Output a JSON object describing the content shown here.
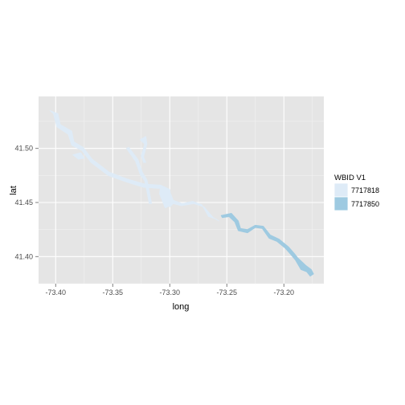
{
  "chart_data": {
    "type": "map",
    "xlabel": "long",
    "ylabel": "lat",
    "xlim": [
      -73.415,
      -73.165
    ],
    "ylim": [
      41.375,
      41.548
    ],
    "x_ticks": [
      -73.4,
      -73.35,
      -73.3,
      -73.25,
      -73.2
    ],
    "x_tick_labels": [
      "-73.40",
      "-73.35",
      "-73.30",
      "-73.25",
      "-73.20"
    ],
    "y_ticks": [
      41.4,
      41.45,
      41.5
    ],
    "y_tick_labels": [
      "41.40",
      "41.45",
      "41.50"
    ],
    "grid": true,
    "panel_background": "#e5e5e5",
    "grid_color": "#ffffff",
    "legend": {
      "title": "WBID V1",
      "position": "right",
      "entries": [
        {
          "label": "7717818",
          "color": "#deebf7"
        },
        {
          "label": "7717850",
          "color": "#9ecae1"
        }
      ]
    },
    "series": [
      {
        "name": "7717818",
        "color": "#deebf7",
        "polygons": [
          [
            [
              -73.405,
              41.535
            ],
            [
              -73.398,
              41.532
            ],
            [
              -73.396,
              41.522
            ],
            [
              -73.386,
              41.516
            ],
            [
              -73.384,
              41.506
            ],
            [
              -73.376,
              41.501
            ],
            [
              -73.368,
              41.49
            ],
            [
              -73.353,
              41.478
            ],
            [
              -73.338,
              41.472
            ],
            [
              -73.322,
              41.467
            ],
            [
              -73.308,
              41.466
            ],
            [
              -73.3,
              41.46
            ],
            [
              -73.297,
              41.452
            ],
            [
              -73.289,
              41.449
            ],
            [
              -73.28,
              41.451
            ],
            [
              -73.272,
              41.448
            ],
            [
              -73.266,
              41.437
            ],
            [
              -73.26,
              41.435
            ],
            [
              -73.257,
              41.433
            ],
            [
              -73.262,
              41.436
            ],
            [
              -73.27,
              41.446
            ],
            [
              -73.279,
              41.449
            ],
            [
              -73.29,
              41.447
            ],
            [
              -73.297,
              41.449
            ],
            [
              -73.3,
              41.446
            ],
            [
              -73.303,
              41.454
            ],
            [
              -73.308,
              41.463
            ],
            [
              -73.323,
              41.464
            ],
            [
              -73.338,
              41.469
            ],
            [
              -73.354,
              41.475
            ],
            [
              -73.369,
              41.487
            ],
            [
              -73.377,
              41.498
            ],
            [
              -73.386,
              41.503
            ],
            [
              -73.389,
              41.513
            ],
            [
              -73.399,
              41.52
            ],
            [
              -73.402,
              41.532
            ]
          ],
          [
            [
              -73.385,
              41.494
            ],
            [
              -73.378,
              41.496
            ],
            [
              -73.375,
              41.491
            ],
            [
              -73.38,
              41.49
            ]
          ],
          [
            [
              -73.338,
              41.5
            ],
            [
              -73.33,
              41.488
            ],
            [
              -73.326,
              41.476
            ],
            [
              -73.322,
              41.47
            ],
            [
              -73.32,
              41.46
            ],
            [
              -73.318,
              41.449
            ],
            [
              -73.316,
              41.449
            ],
            [
              -73.318,
              41.461
            ],
            [
              -73.32,
              41.471
            ],
            [
              -73.324,
              41.478
            ],
            [
              -73.328,
              41.49
            ],
            [
              -73.336,
              41.501
            ]
          ],
          [
            [
              -73.326,
              41.508
            ],
            [
              -73.321,
              41.511
            ],
            [
              -73.32,
              41.504
            ],
            [
              -73.323,
              41.492
            ],
            [
              -73.321,
              41.487
            ],
            [
              -73.323,
              41.487
            ],
            [
              -73.325,
              41.493
            ],
            [
              -73.322,
              41.504
            ]
          ],
          [
            [
              -73.308,
              41.466
            ],
            [
              -73.3,
              41.462
            ],
            [
              -73.299,
              41.455
            ],
            [
              -73.3,
              41.447
            ],
            [
              -73.304,
              41.445
            ],
            [
              -73.306,
              41.45
            ],
            [
              -73.309,
              41.458
            ]
          ]
        ]
      },
      {
        "name": "7717850",
        "color": "#9ecae1",
        "polygons": [
          [
            [
              -73.255,
              41.438
            ],
            [
              -73.246,
              41.44
            ],
            [
              -73.24,
              41.433
            ],
            [
              -73.238,
              41.426
            ],
            [
              -73.232,
              41.425
            ],
            [
              -73.225,
              41.429
            ],
            [
              -73.218,
              41.428
            ],
            [
              -73.212,
              41.42
            ],
            [
              -73.204,
              41.416
            ],
            [
              -73.196,
              41.409
            ],
            [
              -73.191,
              41.403
            ],
            [
              -73.188,
              41.399
            ],
            [
              -73.181,
              41.392
            ],
            [
              -73.176,
              41.388
            ],
            [
              -73.174,
              41.384
            ],
            [
              -73.177,
              41.382
            ],
            [
              -73.18,
              41.386
            ],
            [
              -73.185,
              41.388
            ],
            [
              -73.19,
              41.397
            ],
            [
              -73.194,
              41.402
            ],
            [
              -73.199,
              41.408
            ],
            [
              -73.206,
              41.414
            ],
            [
              -73.213,
              41.417
            ],
            [
              -73.219,
              41.426
            ],
            [
              -73.225,
              41.427
            ],
            [
              -73.232,
              41.422
            ],
            [
              -73.24,
              41.424
            ],
            [
              -73.243,
              41.432
            ],
            [
              -73.248,
              41.437
            ],
            [
              -73.254,
              41.436
            ]
          ]
        ]
      }
    ]
  }
}
